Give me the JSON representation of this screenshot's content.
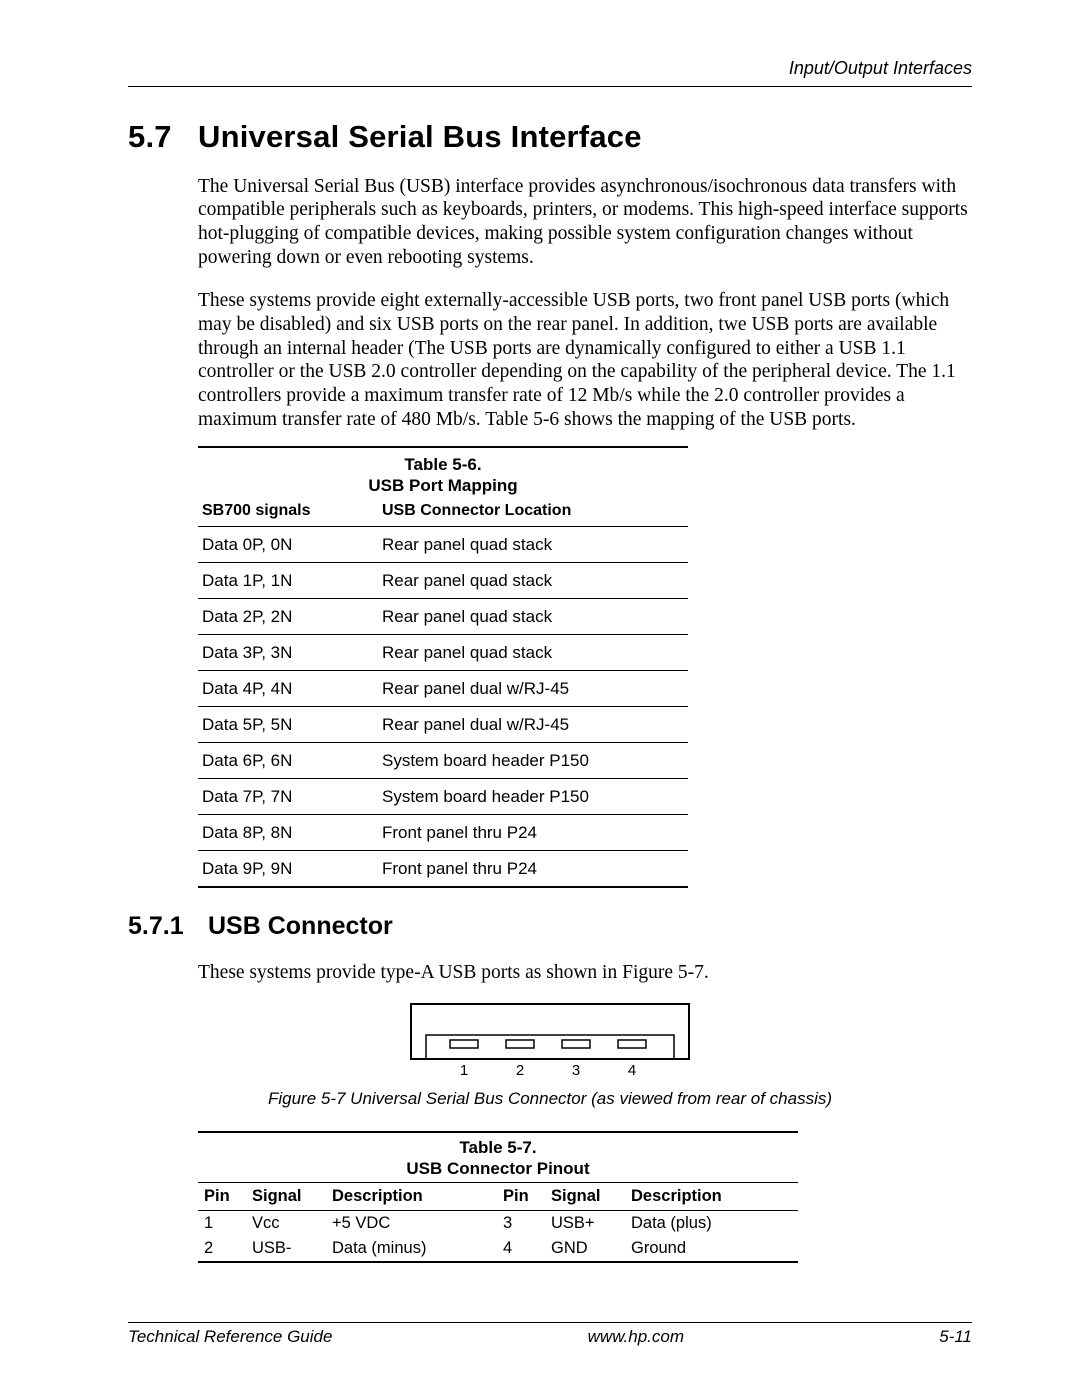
{
  "header": {
    "right": "Input/Output Interfaces"
  },
  "section": {
    "number": "5.7",
    "title": "Universal Serial Bus Interface",
    "para1": "The Universal Serial Bus (USB) interface provides asynchronous/isochronous data transfers with compatible peripherals such as keyboards, printers, or modems. This high-speed interface supports hot-plugging of compatible devices, making possible system configuration changes without powering down or even rebooting systems.",
    "para2": "These systems provide eight externally-accessible USB ports, two front panel USB ports (which may be disabled) and six USB ports on the rear panel. In addition, twe USB ports are available through an internal header (The USB ports are dynamically configured to either a USB 1.1 controller or the USB 2.0 controller depending on the capability of the peripheral device.  The 1.1 controllers provide a maximum transfer rate of 12 Mb/s while the 2.0 controller provides a maximum transfer rate of 480 Mb/s. Table 5-6 shows the mapping of the USB ports."
  },
  "table56": {
    "label": "Table 5-6.",
    "title": "USB Port Mapping",
    "headers": {
      "c1": "SB700 signals",
      "c2": "USB Connector Location"
    },
    "rows": [
      {
        "c1": "Data 0P, 0N",
        "c2": "Rear panel quad stack"
      },
      {
        "c1": "Data 1P, 1N",
        "c2": "Rear panel quad stack"
      },
      {
        "c1": "Data 2P, 2N",
        "c2": "Rear panel quad stack"
      },
      {
        "c1": "Data 3P, 3N",
        "c2": "Rear panel quad stack"
      },
      {
        "c1": "Data 4P, 4N",
        "c2": "Rear panel dual w/RJ-45"
      },
      {
        "c1": "Data 5P, 5N",
        "c2": "Rear panel dual w/RJ-45"
      },
      {
        "c1": "Data 6P, 6N",
        "c2": "System board header P150"
      },
      {
        "c1": "Data 7P, 7N",
        "c2": "System board header P150"
      },
      {
        "c1": "Data 8P, 8N",
        "c2": "Front panel thru P24"
      },
      {
        "c1": "Data 9P, 9N",
        "c2": "Front panel thru P24"
      }
    ]
  },
  "subsection": {
    "number": "5.7.1",
    "title": "USB Connector",
    "para": "These systems provide type-A USB ports as shown in Figure 5-7."
  },
  "figure": {
    "caption": "Figure 5-7 Universal Serial Bus Connector (as viewed from rear of chassis)",
    "pins": [
      "1",
      "2",
      "3",
      "4"
    ]
  },
  "table57": {
    "label": "Table 5-7.",
    "title": "USB Connector Pinout",
    "headers": {
      "pin": "Pin",
      "signal": "Signal",
      "desc": "Description"
    },
    "rows": [
      {
        "p1": "1",
        "s1": "Vcc",
        "d1": "+5 VDC",
        "p2": "3",
        "s2": "USB+",
        "d2": "Data (plus)"
      },
      {
        "p1": "2",
        "s1": "USB-",
        "d1": "Data (minus)",
        "p2": "4",
        "s2": "GND",
        "d2": "Ground"
      }
    ]
  },
  "footer": {
    "left": "Technical Reference Guide",
    "center": "www.hp.com",
    "right": "5-11"
  }
}
